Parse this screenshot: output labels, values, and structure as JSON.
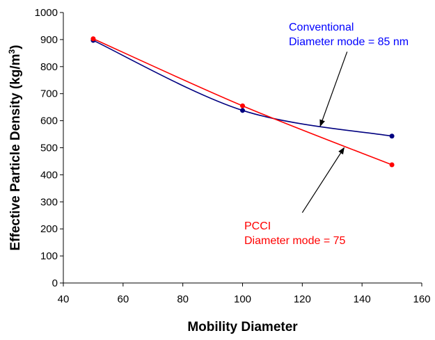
{
  "chart_data": {
    "type": "line",
    "xlabel": "Mobility Diameter",
    "ylabel": "Effective Particle Density (kg/m",
    "ylabel_sup": "3",
    "ylabel_end": ")",
    "xlim": [
      40,
      160
    ],
    "ylim": [
      0,
      1000
    ],
    "xticks": [
      40,
      60,
      80,
      100,
      120,
      140,
      160
    ],
    "yticks": [
      0,
      100,
      200,
      300,
      400,
      500,
      600,
      700,
      800,
      900,
      1000
    ],
    "grid": false,
    "series": [
      {
        "key": "conventional",
        "color": "#000080",
        "x": [
          50,
          100,
          150
        ],
        "y": [
          897,
          638,
          543
        ]
      },
      {
        "key": "pcci",
        "color": "#ff0000",
        "x": [
          50,
          100,
          150
        ],
        "y": [
          903,
          655,
          437
        ]
      }
    ],
    "annotations": [
      {
        "key": "conventional",
        "color": "#0000ff",
        "lines": [
          "Conventional",
          "Diameter mode = 85 nm"
        ],
        "arrow_from": [
          135,
          855
        ],
        "arrow_to": [
          126,
          580
        ]
      },
      {
        "key": "pcci",
        "color": "#ff0000",
        "lines": [
          "PCCI",
          "Diameter mode = 75"
        ],
        "arrow_from": [
          120,
          260
        ],
        "arrow_to": [
          134,
          500
        ]
      }
    ]
  }
}
